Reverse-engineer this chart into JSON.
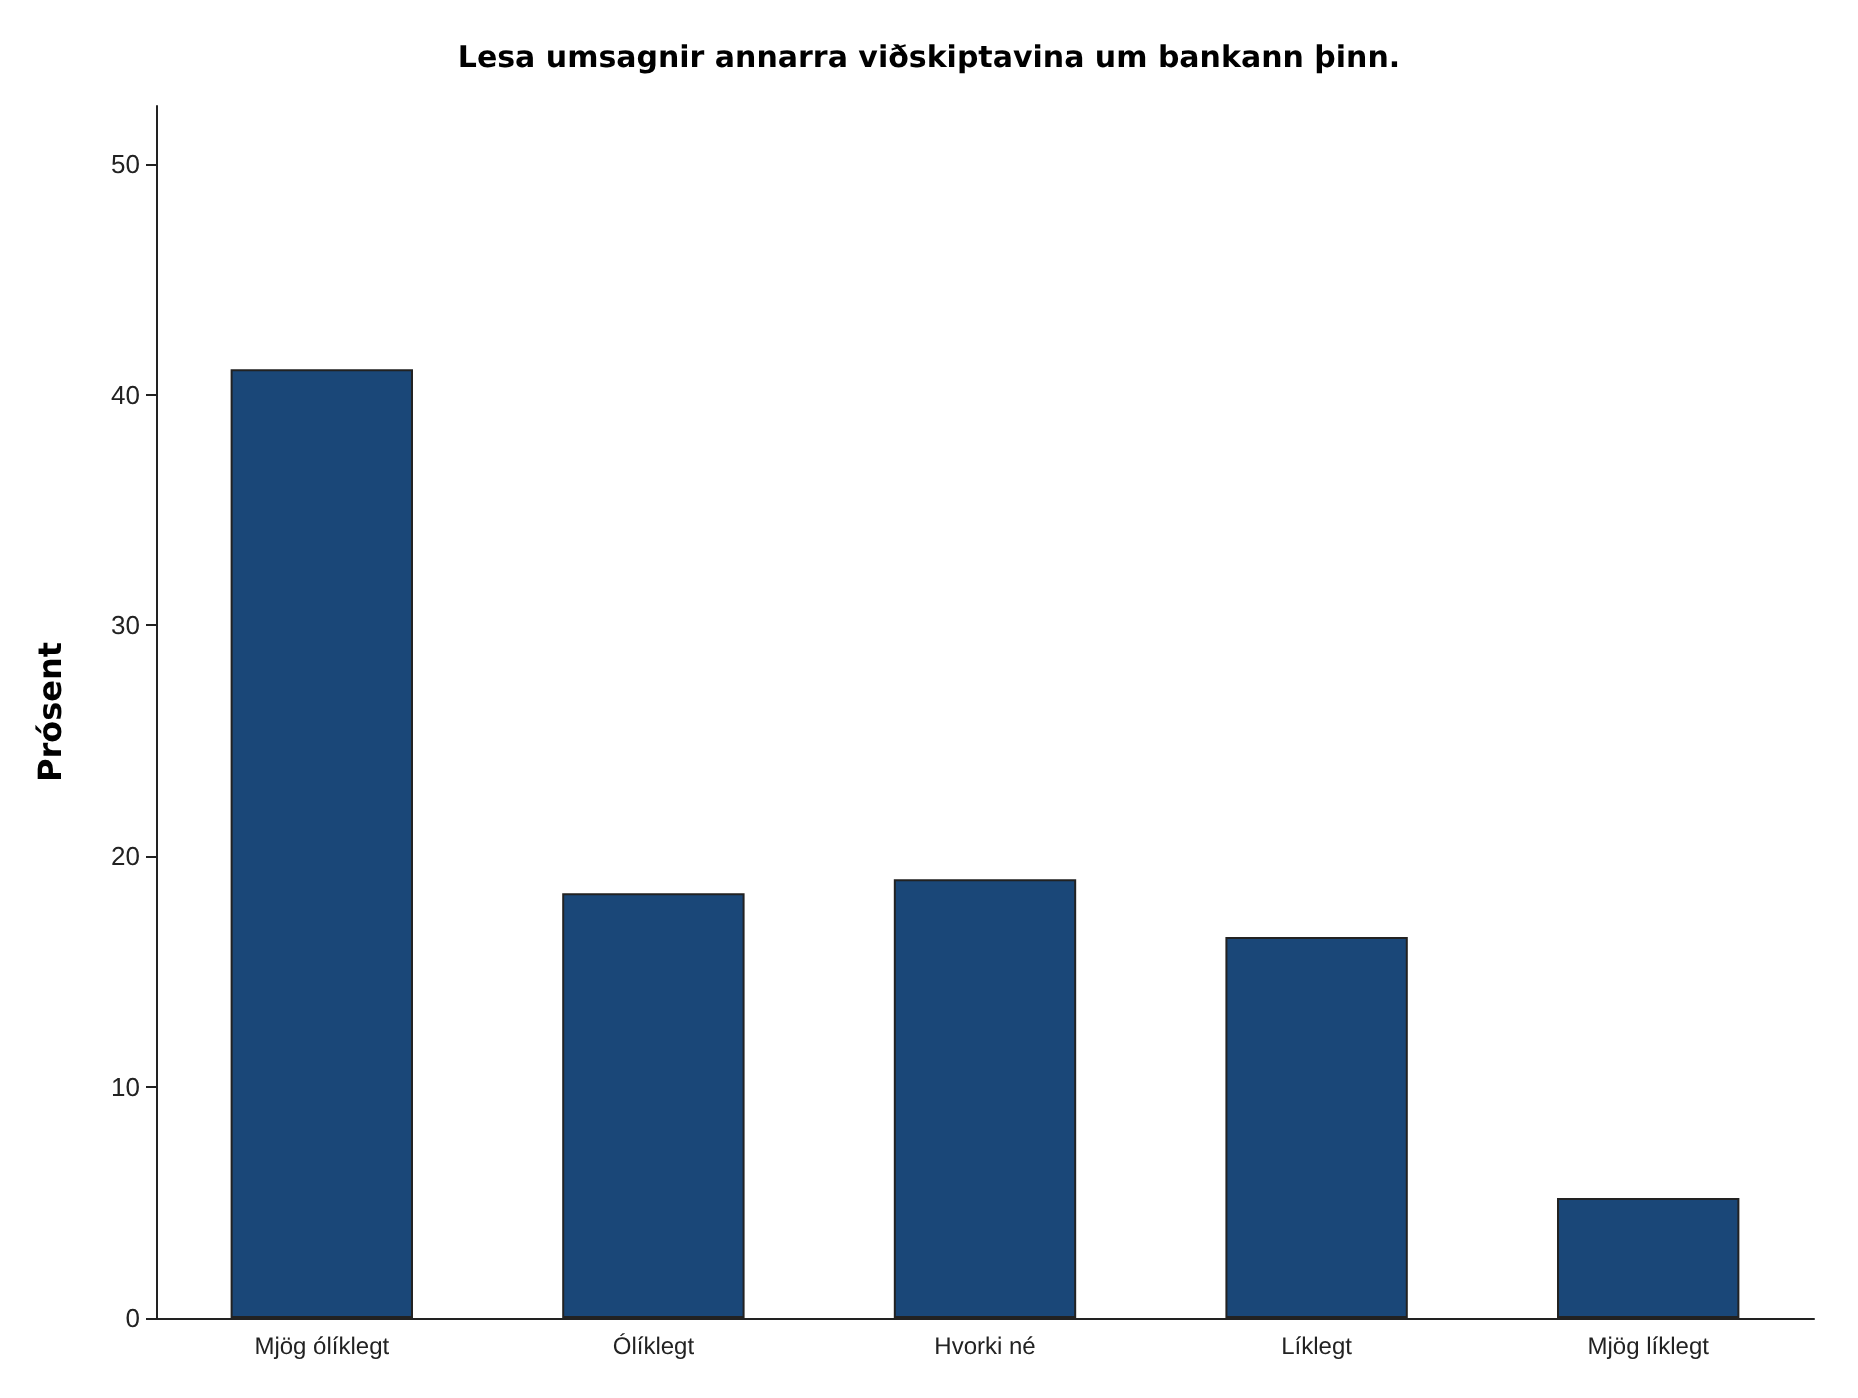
{
  "chart_data": {
    "type": "bar",
    "title": "Lesa umsagnir annarra viðskiptavina um bankann þinn.",
    "ylabel": "Prósent",
    "categories": [
      "Mjög ólíklegt",
      "Ólíklegt",
      "Hvorki né",
      "Líklegt",
      "Mjög líklegt"
    ],
    "values": [
      41.1,
      18.4,
      19.0,
      16.5,
      5.2
    ],
    "color": "#1a4778",
    "ylim": [
      0,
      52.5
    ],
    "yticks": [
      0,
      10,
      20,
      30,
      40,
      50
    ],
    "grid": false
  }
}
